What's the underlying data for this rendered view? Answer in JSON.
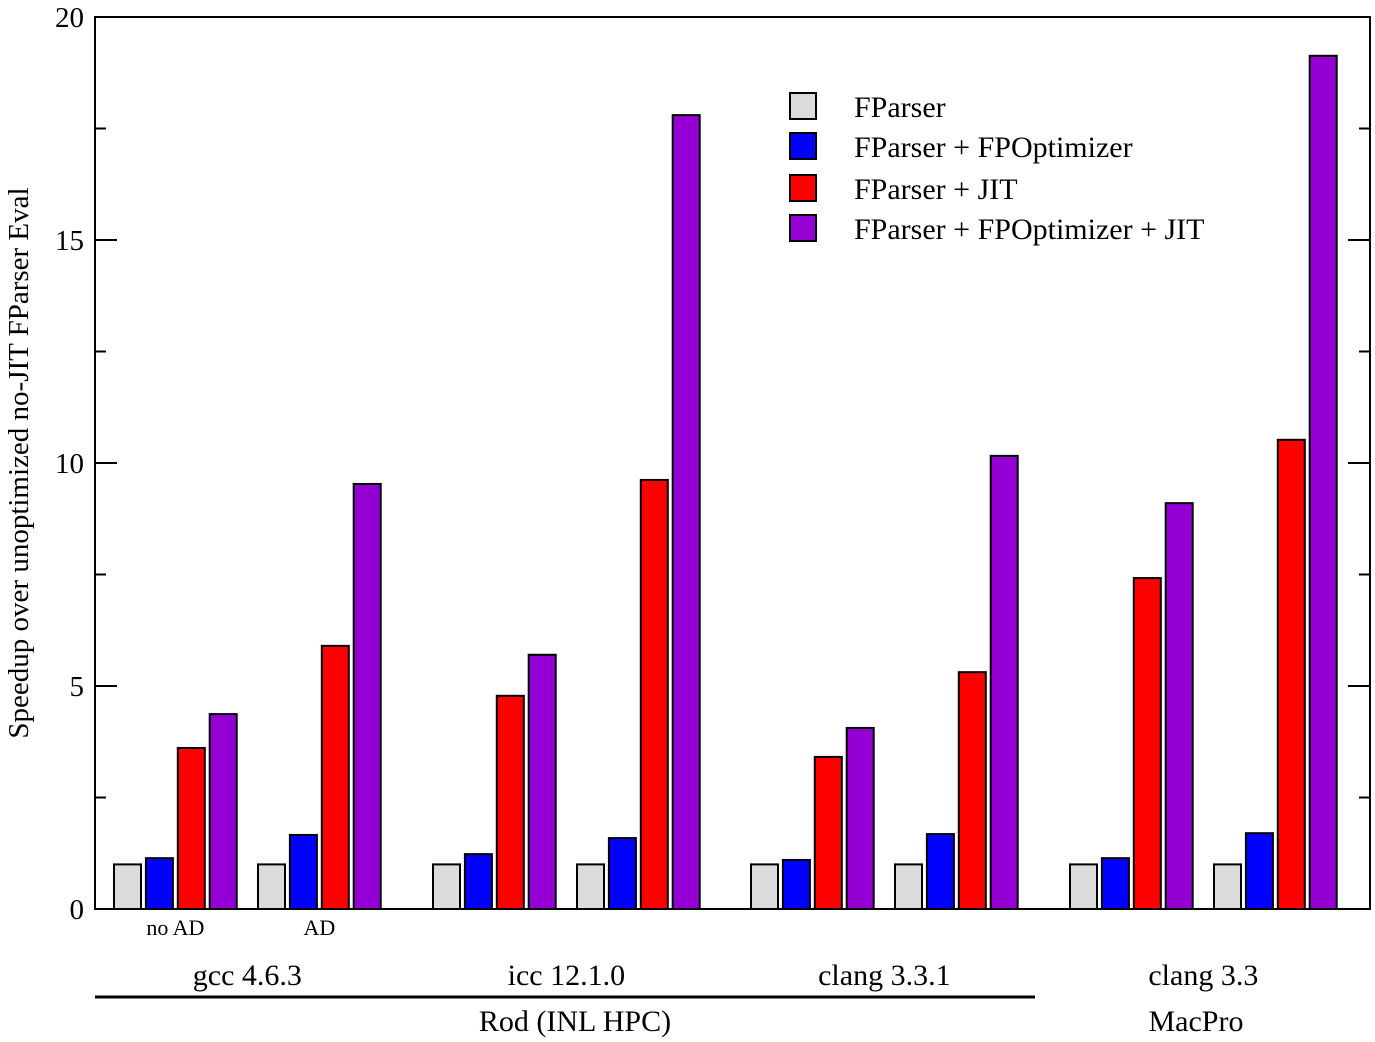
{
  "chart_data": {
    "type": "bar",
    "title": "",
    "xlabel": "",
    "ylabel": "Speedup over unoptimized no-JIT FParser Eval",
    "ylim": [
      0,
      20
    ],
    "yticks": [
      "0",
      "5",
      "10",
      "15",
      "20"
    ],
    "grid": false,
    "legend_position": "top-right",
    "groups": [
      {
        "label": "gcc 4.6.3",
        "platform": "Rod (INL HPC)",
        "subgroups": [
          "no AD",
          "AD"
        ]
      },
      {
        "label": "icc 12.1.0",
        "platform": "Rod (INL HPC)",
        "subgroups": [
          "",
          ""
        ]
      },
      {
        "label": "clang 3.3.1",
        "platform": "Rod (INL HPC)",
        "subgroups": [
          "",
          ""
        ]
      },
      {
        "label": "clang 3.3",
        "platform": "MacPro",
        "subgroups": [
          "",
          ""
        ]
      }
    ],
    "platforms": [
      "Rod (INL HPC)",
      "MacPro"
    ],
    "series": [
      {
        "name": "FParser",
        "color": "#dcdcdc",
        "values": [
          1.0,
          1.0,
          1.0,
          1.0,
          1.0,
          1.0,
          1.0,
          1.0
        ]
      },
      {
        "name": "FParser + FPOptimizer",
        "color": "#0000ff",
        "values": [
          1.14,
          1.66,
          1.23,
          1.59,
          1.1,
          1.68,
          1.14,
          1.7
        ]
      },
      {
        "name": "FParser + JIT",
        "color": "#ff0000",
        "values": [
          3.61,
          5.9,
          4.78,
          9.62,
          3.41,
          5.31,
          7.42,
          10.52
        ]
      },
      {
        "name": "FParser + FPOptimizer + JIT",
        "color": "#9400d3",
        "values": [
          4.37,
          9.53,
          5.7,
          17.8,
          4.06,
          10.16,
          9.1,
          19.13
        ]
      }
    ]
  }
}
